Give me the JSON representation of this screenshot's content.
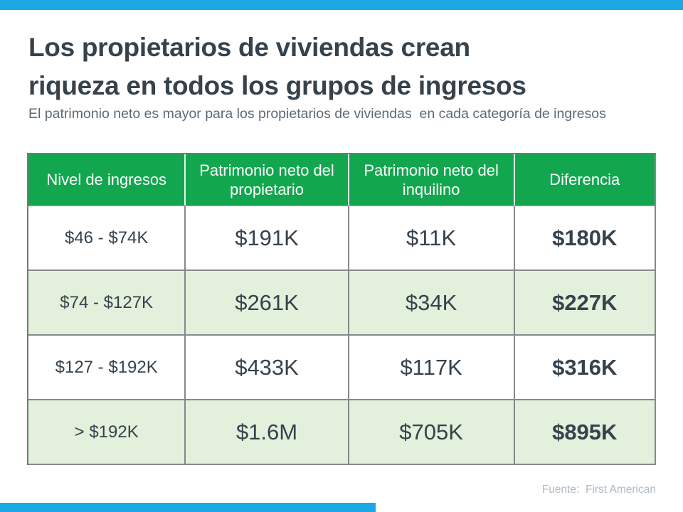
{
  "colors": {
    "accent_bar": "#1CA9E3",
    "table_header_green": "#12A74F",
    "table_alt_row_green": "#E2F0DC",
    "title_text": "#36424C",
    "subtitle_text": "#5D6A75",
    "source_text": "#AEBAC4"
  },
  "header": {
    "title_line1": "Los propietarios de viviendas crean",
    "title_line2": "riqueza en todos los grupos de ingresos",
    "subtitle": "El patrimonio neto es mayor para los propietarios de viviendas  en cada categoría de ingresos"
  },
  "chart_data": {
    "type": "table",
    "title": "Los propietarios de viviendas crean riqueza en todos los grupos de ingresos",
    "subtitle": "El patrimonio neto es mayor para los propietarios de viviendas en cada categoría de ingresos",
    "columns": [
      "Nivel de ingresos",
      "Patrimonio neto del propietario",
      "Patrimonio neto del inquilino",
      "Diferencia"
    ],
    "rows": [
      [
        "$46 - $74K",
        "$191K",
        "$11K",
        "$180K"
      ],
      [
        "$74 - $127K",
        "$261K",
        "$34K",
        "$227K"
      ],
      [
        "$127 - $192K",
        "$433K",
        "$117K",
        "$316K"
      ],
      [
        "> $192K",
        "$1.6M",
        "$705K",
        "$895K"
      ]
    ],
    "source": "Fuente:  First American"
  },
  "footer": {
    "source": "Fuente:  First American"
  }
}
